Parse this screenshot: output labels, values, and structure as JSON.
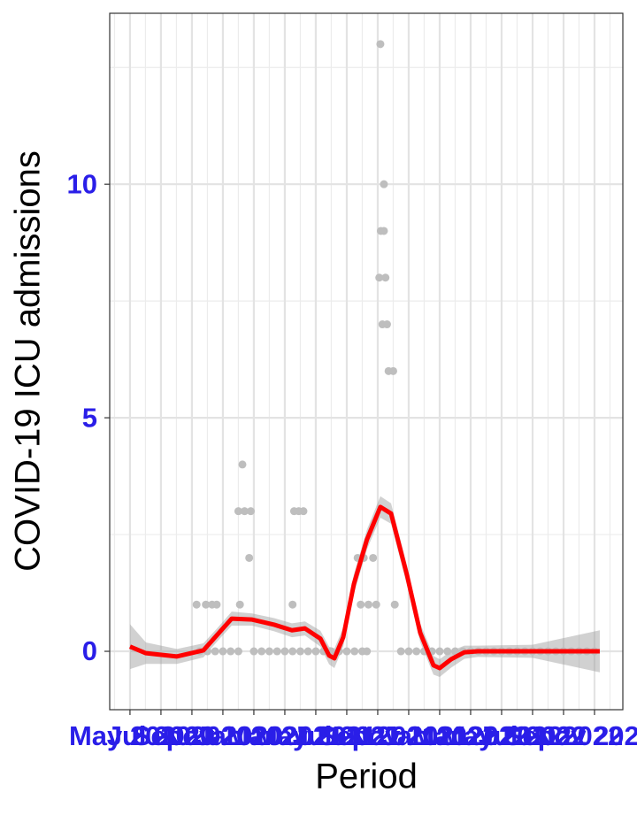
{
  "chart_data": {
    "type": "scatter",
    "x_label": "Period",
    "y_label": "COVID-19 ICU admissions",
    "xlim": [
      -1.31,
      31.83
    ],
    "ylim": [
      -1.25,
      13.66
    ],
    "xticks": [
      {
        "value": 0,
        "label": "May 2020"
      },
      {
        "value": 2,
        "label": "Jul 2020"
      },
      {
        "value": 4,
        "label": "Sep 2020"
      },
      {
        "value": 6,
        "label": "Nov 2020"
      },
      {
        "value": 8,
        "label": "Jan 2021"
      },
      {
        "value": 10,
        "label": "Mar 2021"
      },
      {
        "value": 12,
        "label": "May 2021"
      },
      {
        "value": 14,
        "label": "Jul 2021"
      },
      {
        "value": 16,
        "label": "Sep 2021"
      },
      {
        "value": 18,
        "label": "Nov 2021"
      },
      {
        "value": 20,
        "label": "Jan 2022"
      },
      {
        "value": 22,
        "label": "Mar 2022"
      },
      {
        "value": 24,
        "label": "May 2022"
      },
      {
        "value": 26,
        "label": "Jul 2022"
      },
      {
        "value": 28,
        "label": "Sep 2022"
      },
      {
        "value": 30,
        "label": "Nov 2022"
      }
    ],
    "minor_xticks": [
      -1,
      1,
      3,
      5,
      7,
      9,
      11,
      13,
      15,
      17,
      19,
      21,
      23,
      25,
      27,
      29,
      31
    ],
    "yticks": [
      0,
      5,
      10
    ],
    "minor_yticks": [
      2.5,
      7.5,
      12.5
    ],
    "grid": true,
    "points": {
      "color": "#bebebe",
      "x": [
        4.5,
        5,
        5.5,
        6,
        6.5,
        7,
        8,
        8.5,
        9,
        9.5,
        10,
        10.5,
        11,
        11.5,
        12,
        12.5,
        13,
        13.5,
        14,
        14.5,
        15,
        15.3,
        17.5,
        18,
        18.5,
        19,
        19.5,
        20,
        20.5,
        21,
        21.5,
        22,
        22.5,
        23,
        23.5,
        24,
        24.5,
        25,
        25.5,
        26,
        26.5,
        27,
        27.5,
        28,
        28.5,
        29,
        29.5,
        30,
        4.3,
        4.9,
        5.3,
        5.6,
        7.1,
        7.26,
        7.0,
        7.4,
        7.8,
        7.7,
        10.5,
        10.6,
        10.9,
        11.2,
        14.7,
        15.1,
        15.7,
        14.9,
        15.4,
        15.9,
        16.17,
        16.4,
        16.2,
        16.4,
        16.1,
        16.5,
        16.3,
        16.6,
        16.7,
        17.0,
        17.1
      ],
      "y": [
        0,
        0,
        0,
        0,
        0,
        0,
        0,
        0,
        0,
        0,
        0,
        0,
        0,
        0,
        0,
        0,
        0,
        0,
        0,
        0,
        0,
        0,
        0,
        0,
        0,
        0,
        0,
        0,
        0,
        0,
        0,
        0,
        0,
        0,
        0,
        0,
        0,
        0,
        0,
        0,
        0,
        0,
        0,
        0,
        0,
        0,
        0,
        0,
        1,
        1,
        1,
        1,
        1,
        4,
        3,
        3,
        3,
        2,
        1,
        3,
        3,
        3,
        2,
        2,
        2,
        1,
        1,
        1,
        13,
        10,
        9,
        9,
        8,
        8,
        7,
        7,
        6,
        6,
        1
      ]
    },
    "smooth": {
      "color": "#ff0000",
      "band_color": "#999999",
      "x": [
        0,
        1.03,
        3.03,
        4.74,
        5.6,
        6.57,
        7.89,
        9.31,
        10.46,
        11.3,
        12.3,
        12.86,
        13.2,
        13.77,
        14.46,
        15.3,
        16.17,
        16.86,
        17.89,
        18.74,
        19.6,
        20,
        20.74,
        21.6,
        22.46,
        26,
        30.34
      ],
      "y": [
        0.1,
        -0.04,
        -0.11,
        0.02,
        0.34,
        0.7,
        0.68,
        0.57,
        0.45,
        0.49,
        0.27,
        -0.09,
        -0.15,
        0.3,
        1.44,
        2.39,
        3.09,
        2.95,
        1.63,
        0.4,
        -0.3,
        -0.36,
        -0.17,
        -0.02,
        0,
        0,
        0
      ],
      "lower": [
        -0.38,
        -0.27,
        -0.27,
        -0.13,
        0.2,
        0.55,
        0.55,
        0.43,
        0.3,
        0.34,
        0.1,
        -0.28,
        -0.36,
        0.1,
        1.23,
        2.18,
        2.86,
        2.73,
        1.42,
        0.2,
        -0.5,
        -0.55,
        -0.35,
        -0.16,
        -0.12,
        -0.14,
        -0.45
      ],
      "upper": [
        0.58,
        0.19,
        0.05,
        0.17,
        0.48,
        0.85,
        0.81,
        0.71,
        0.6,
        0.64,
        0.44,
        0.1,
        0.06,
        0.5,
        1.65,
        2.6,
        3.32,
        3.17,
        1.84,
        0.6,
        -0.1,
        -0.17,
        0.01,
        0.12,
        0.12,
        0.14,
        0.45
      ]
    }
  }
}
